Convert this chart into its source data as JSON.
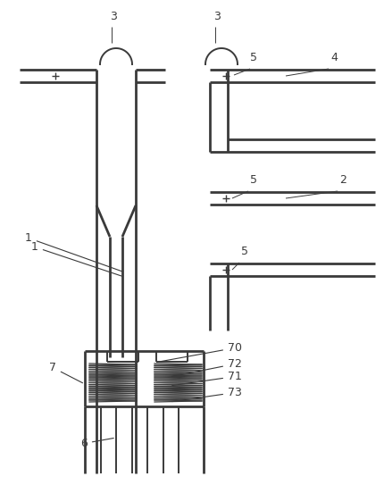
{
  "bg_color": "#ffffff",
  "lc": "#3a3a3a",
  "lw": 1.4,
  "tlw": 2.0
}
